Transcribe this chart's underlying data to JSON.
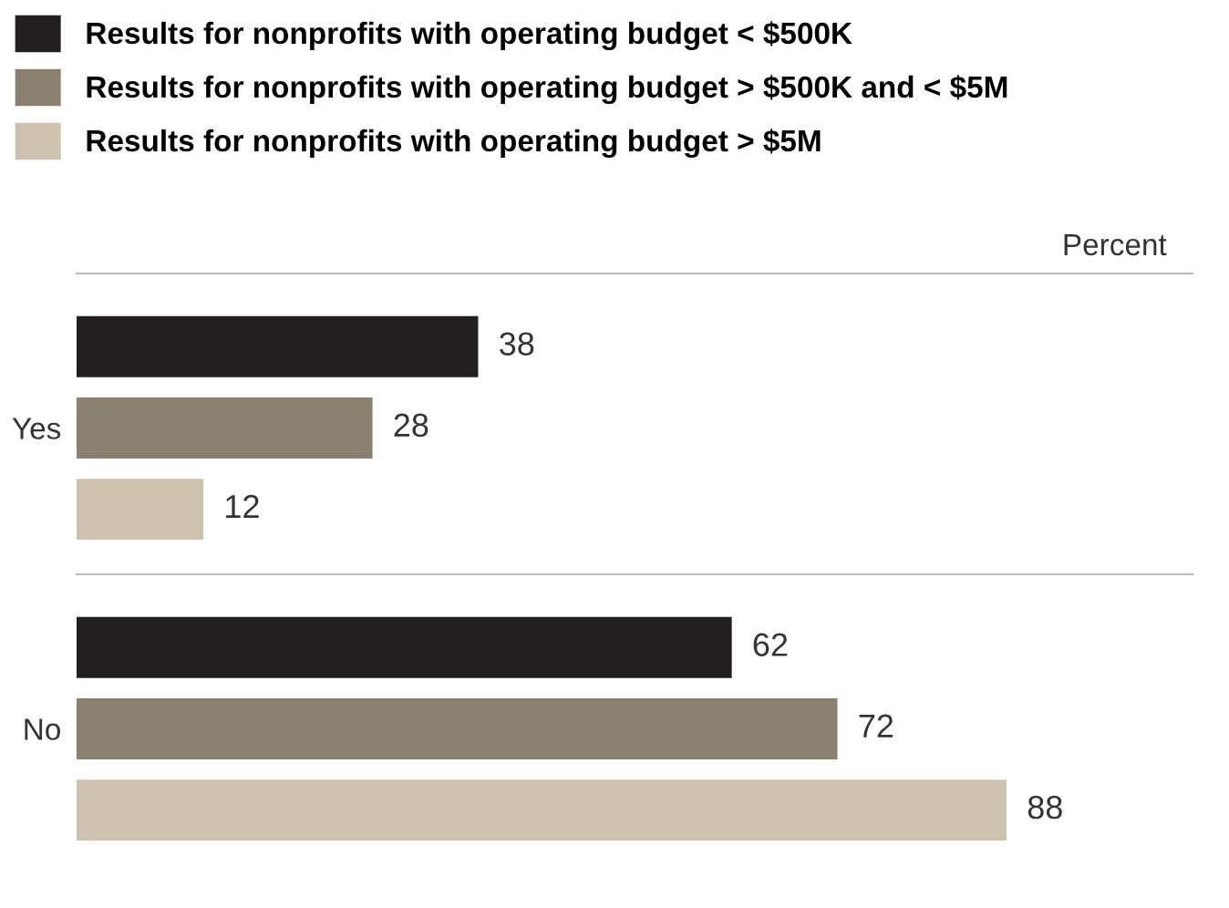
{
  "chart_data": {
    "type": "bar",
    "orientation": "horizontal",
    "annotations": [
      "Percent"
    ],
    "categories": [
      "Yes",
      "No"
    ],
    "series": [
      {
        "name": "Results for nonprofits with operating budget < $500K",
        "color": "#231f20",
        "values": [
          38,
          62
        ]
      },
      {
        "name": "Results for nonprofits with operating budget > $500K and < $5M",
        "color": "#8a8070",
        "values": [
          28,
          72
        ]
      },
      {
        "name": "Results for nonprofits with operating budget > $5M",
        "color": "#cdc2b0",
        "values": [
          12,
          88
        ]
      }
    ],
    "data_labels": true,
    "legend": "top left"
  }
}
